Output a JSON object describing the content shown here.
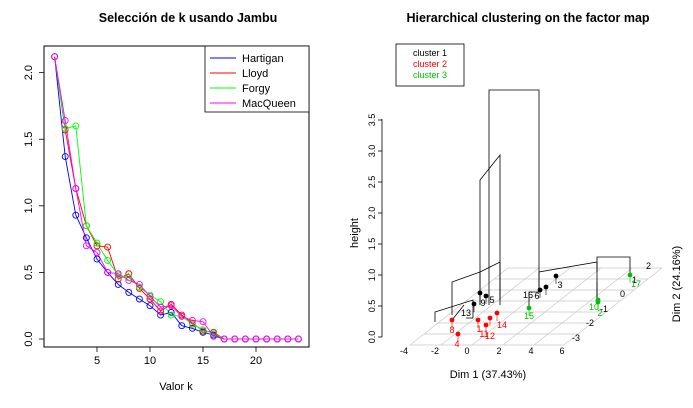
{
  "chart_data": [
    {
      "type": "line",
      "title": "Selección de k usando Jambu",
      "xlabel": "Valor k",
      "ylabel": "",
      "xlim": [
        0,
        25
      ],
      "ylim": [
        -0.06,
        2.2
      ],
      "xticks": [
        "5",
        "10",
        "15",
        "20"
      ],
      "yticks": [
        "0.0",
        "0.5",
        "1.0",
        "1.5",
        "2.0"
      ],
      "legend_position": "top-right",
      "legend_box": true,
      "markers": "open circles",
      "x": [
        1,
        2,
        3,
        4,
        5,
        6,
        7,
        8,
        9,
        10,
        11,
        12,
        13,
        14,
        15,
        16,
        17,
        18,
        19,
        20,
        21,
        22,
        23,
        24
      ],
      "series": [
        {
          "name": "Hartigan",
          "color": "#0000ff",
          "values": [
            2.12,
            1.37,
            0.93,
            0.76,
            0.6,
            0.5,
            0.41,
            0.35,
            0.3,
            0.25,
            0.18,
            0.2,
            0.1,
            0.08,
            0.05,
            0.03,
            0.0,
            0.0,
            0.0,
            0.0,
            0.0,
            0.0,
            0.0,
            0.0
          ]
        },
        {
          "name": "Lloyd",
          "color": "#ff0000",
          "values": [
            2.12,
            1.57,
            1.13,
            0.85,
            0.7,
            0.69,
            0.45,
            0.49,
            0.38,
            0.3,
            0.21,
            0.26,
            0.18,
            0.12,
            0.06,
            0.05,
            0.0,
            0.0,
            0.0,
            0.0,
            0.0,
            0.0,
            0.0,
            0.0
          ]
        },
        {
          "name": "Forgy",
          "color": "#00ff00",
          "values": [
            2.12,
            1.58,
            1.6,
            0.85,
            0.72,
            0.59,
            0.48,
            0.46,
            0.39,
            0.33,
            0.28,
            0.18,
            0.17,
            0.11,
            0.07,
            0.04,
            0.0,
            0.0,
            0.0,
            0.0,
            0.0,
            0.0,
            0.0,
            0.0
          ]
        },
        {
          "name": "MacQueen",
          "color": "#ff00ff",
          "values": [
            2.12,
            1.64,
            1.13,
            0.7,
            0.65,
            0.5,
            0.49,
            0.44,
            0.41,
            0.32,
            0.24,
            0.25,
            0.17,
            0.14,
            0.13,
            0.02,
            0.0,
            0.0,
            0.0,
            0.0,
            0.0,
            0.0,
            0.0,
            0.0
          ]
        }
      ]
    },
    {
      "type": "scatter",
      "title": "Hierarchical clustering on the factor map",
      "xlabel": "Dim 1 (37.43%)",
      "ylabel": "Dim 2 (24.16%)",
      "zlabel": "height",
      "xticks": [
        "-4",
        "-2",
        "0",
        "2",
        "4",
        "6"
      ],
      "yticks": [
        "-3",
        "-2",
        "-1",
        "0",
        "1",
        "2"
      ],
      "zticks": [
        "0.0",
        "0.5",
        "1.0",
        "1.5",
        "2.0",
        "2.5",
        "3.0",
        "3.5"
      ],
      "legend_position": "top-left",
      "legend": [
        {
          "name": "cluster 1",
          "color": "#000000"
        },
        {
          "name": "cluster 2",
          "color": "#ff0000"
        },
        {
          "name": "cluster 3",
          "color": "#00c000"
        }
      ],
      "points": [
        {
          "label": "13",
          "cluster": 1
        },
        {
          "label": "9",
          "cluster": 1
        },
        {
          "label": "5",
          "cluster": 1
        },
        {
          "label": "16",
          "cluster": 1
        },
        {
          "label": "6",
          "cluster": 1
        },
        {
          "label": "3",
          "cluster": 1
        },
        {
          "label": "8",
          "cluster": 2
        },
        {
          "label": "4",
          "cluster": 2
        },
        {
          "label": "1",
          "cluster": 2
        },
        {
          "label": "11",
          "cluster": 2
        },
        {
          "label": "12",
          "cluster": 2
        },
        {
          "label": "14",
          "cluster": 2
        },
        {
          "label": "15",
          "cluster": 3
        },
        {
          "label": "10",
          "cluster": 3
        },
        {
          "label": "2",
          "cluster": 3
        },
        {
          "label": "17",
          "cluster": 3
        }
      ]
    }
  ]
}
